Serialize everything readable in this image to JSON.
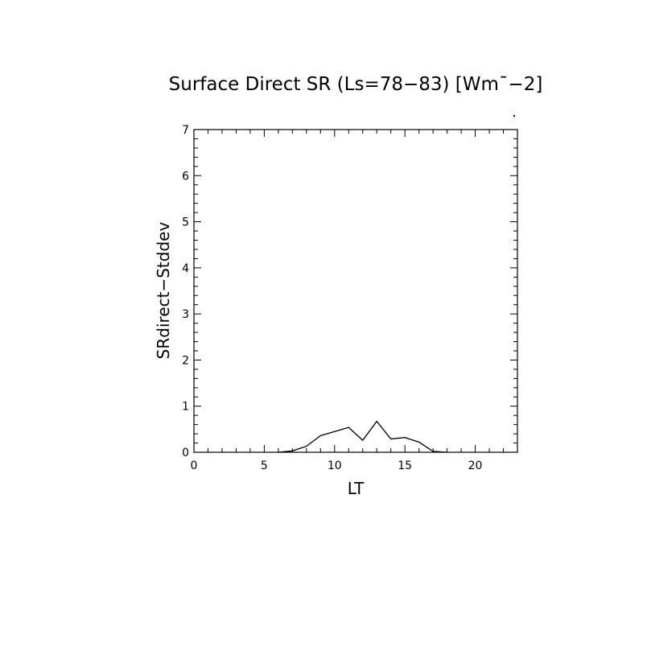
{
  "chart_data": {
    "type": "line",
    "title": "Surface Direct SR (Ls=78−83) [Wm¯−2]",
    "xlabel": "LT",
    "ylabel": "SRdirect−Stddev",
    "xlim": [
      0,
      23
    ],
    "ylim": [
      0,
      7
    ],
    "x_ticks": [
      0,
      5,
      10,
      15,
      20
    ],
    "y_ticks": [
      0,
      1,
      2,
      3,
      4,
      5,
      6,
      7
    ],
    "x_minor_step": 1,
    "y_minor_step": 0.2,
    "grid": false,
    "series": [
      {
        "x": [
          6,
          7,
          8,
          9,
          10,
          11,
          12,
          13,
          14,
          15,
          16,
          17,
          18
        ],
        "values": [
          0.0,
          0.03,
          0.13,
          0.36,
          0.45,
          0.54,
          0.26,
          0.67,
          0.29,
          0.32,
          0.22,
          0.02,
          0.0
        ]
      }
    ]
  }
}
